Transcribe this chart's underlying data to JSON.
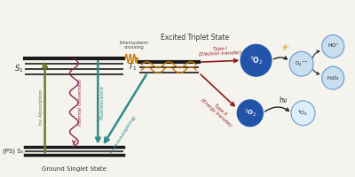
{
  "bg_color": "#f5f3ee",
  "ground_label": "Ground Singlet State",
  "ps_s0_label": "(PS) S₀",
  "s1_label": "S₁",
  "t1_label": "T₁",
  "excited_triplet_label": "Excited Triplet State",
  "hv_abs_label": "hν Absorption",
  "internal_conv_label": "Internal conversion",
  "fluorescence_label": "Fluorescence",
  "phosphorescence_label": "Phosphorescence",
  "intersystem_label": "Intersystem\ncrossing",
  "type1_label": "Type I\n(Electron transfer)",
  "type2_label": "Type II\n(Energy transfer)",
  "eminus_label": "e⁻",
  "hv_label": "hν",
  "colors": {
    "energy_line": "#1a1a1a",
    "hv_abs_arrow": "#6b7c2e",
    "fluorescence_arrow": "#2e8b8b",
    "phosphorescence_arrow": "#2e8b8b",
    "internal_conv_wave": "#8b2252",
    "intersystem_wave": "#cc7700",
    "type1_arrow": "#8b1a1a",
    "type2_arrow": "#8b1a1a",
    "dark_blue_circle": "#2255aa",
    "light_blue_circle": "#c8dff0",
    "circle_border_dark": "#2255aa",
    "circle_border_light": "#6699cc",
    "eminus_color": "#cc8800"
  }
}
